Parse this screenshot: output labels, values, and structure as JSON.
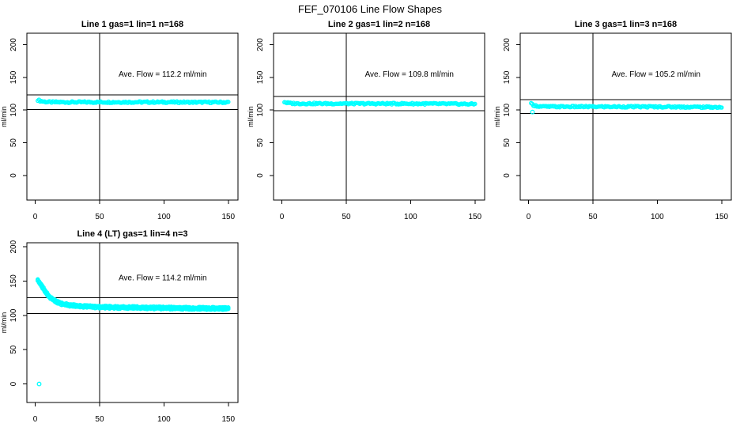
{
  "chart_title": "FEF_070106  Line Flow Shapes",
  "marker_color": "#00FFFF",
  "chart_data": [
    {
      "type": "scatter",
      "title": "Line 1 gas=1 lin=1 n=168",
      "gas": 1,
      "lin": 1,
      "n": 168,
      "annotation": "Ave. Flow =  112.2  ml/min",
      "ave_flow_ml_min": 112.2,
      "ylabel": "ml/min",
      "xlim": [
        0,
        150
      ],
      "ylim": [
        0,
        200
      ],
      "x_ticks": [
        0,
        50,
        100,
        150
      ],
      "y_ticks": [
        0,
        50,
        100,
        150,
        200
      ],
      "vline_x": 50,
      "hlines": [
        123.4,
        101.0
      ],
      "points_n": 168,
      "traces": 1,
      "profile": [
        [
          2,
          115.5
        ],
        [
          4,
          114
        ],
        [
          7,
          112.8
        ],
        [
          12,
          112.2
        ],
        [
          30,
          112.1
        ],
        [
          80,
          112.2
        ],
        [
          150,
          111.9
        ]
      ],
      "outliers": []
    },
    {
      "type": "scatter",
      "title": "Line 2 gas=1 lin=2 n=168",
      "gas": 1,
      "lin": 2,
      "n": 168,
      "annotation": "Ave. Flow =  109.8  ml/min",
      "ave_flow_ml_min": 109.8,
      "ylabel": "ml/min",
      "xlim": [
        0,
        150
      ],
      "ylim": [
        0,
        200
      ],
      "x_ticks": [
        0,
        50,
        100,
        150
      ],
      "y_ticks": [
        0,
        50,
        100,
        150,
        200
      ],
      "vline_x": 50,
      "hlines": [
        120.8,
        98.8
      ],
      "points_n": 168,
      "traces": 1,
      "profile": [
        [
          2,
          112.5
        ],
        [
          4,
          111
        ],
        [
          7,
          110.3
        ],
        [
          12,
          110
        ],
        [
          40,
          109.9
        ],
        [
          100,
          109.8
        ],
        [
          150,
          109.2
        ]
      ],
      "outliers": []
    },
    {
      "type": "scatter",
      "title": "Line 3 gas=1 lin=3 n=168",
      "gas": 1,
      "lin": 3,
      "n": 168,
      "annotation": "Ave. Flow =  105.2  ml/min",
      "ave_flow_ml_min": 105.2,
      "ylabel": "ml/min",
      "xlim": [
        0,
        150
      ],
      "ylim": [
        0,
        200
      ],
      "x_ticks": [
        0,
        50,
        100,
        150
      ],
      "y_ticks": [
        0,
        50,
        100,
        150,
        200
      ],
      "vline_x": 50,
      "hlines": [
        115.7,
        94.7
      ],
      "points_n": 168,
      "traces": 1,
      "profile": [
        [
          2,
          109.5
        ],
        [
          4,
          107.5
        ],
        [
          7,
          106
        ],
        [
          12,
          105.3
        ],
        [
          40,
          105.2
        ],
        [
          100,
          105.1
        ],
        [
          150,
          104.4
        ]
      ],
      "outliers": [
        [
          3,
          97
        ]
      ]
    },
    {
      "type": "scatter",
      "title": "Line 4 (LT) gas=1 lin=4 n=3",
      "gas": 1,
      "lin": 4,
      "n": 3,
      "annotation": "Ave. Flow =  114.2  ml/min",
      "ave_flow_ml_min": 114.2,
      "ylabel": "ml/min",
      "xlim": [
        0,
        150
      ],
      "ylim": [
        0,
        200
      ],
      "x_ticks": [
        0,
        50,
        100,
        150
      ],
      "y_ticks": [
        0,
        50,
        100,
        150,
        200
      ],
      "vline_x": 50,
      "hlines": [
        125.6,
        102.8
      ],
      "points_n": 168,
      "traces": 3,
      "profile": [
        [
          2,
          151
        ],
        [
          3,
          149
        ],
        [
          5,
          143
        ],
        [
          7,
          137
        ],
        [
          9,
          131.5
        ],
        [
          11,
          127
        ],
        [
          14,
          122.5
        ],
        [
          17,
          119.5
        ],
        [
          21,
          117
        ],
        [
          26,
          115
        ],
        [
          32,
          113.8
        ],
        [
          40,
          112.8
        ],
        [
          55,
          112
        ],
        [
          75,
          111.4
        ],
        [
          100,
          110.9
        ],
        [
          125,
          110.4
        ],
        [
          150,
          110
        ]
      ],
      "outliers": [
        [
          3,
          0
        ]
      ]
    }
  ]
}
